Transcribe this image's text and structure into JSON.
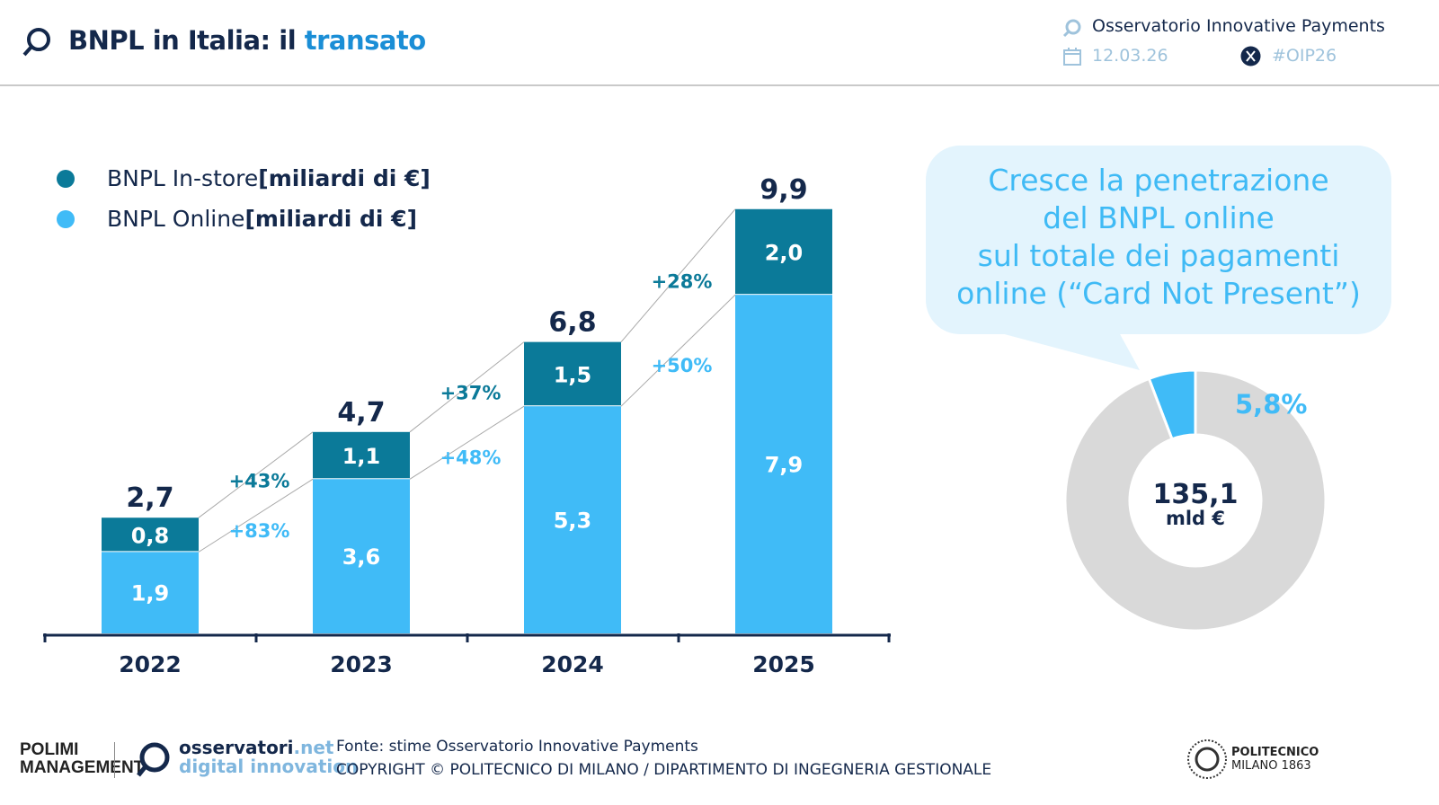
{
  "header": {
    "title_main": "BNPL in Italia: il ",
    "title_accent": "transato",
    "org": "Osservatorio Innovative Payments",
    "date": "12.03.26",
    "hashtag": "#OIP26"
  },
  "legend": [
    {
      "label": "BNPL In-store ",
      "unit": "[miliardi di €]",
      "color": "#0b7a99"
    },
    {
      "label": "BNPL Online ",
      "unit": "[miliardi di €]",
      "color": "#40bbf7"
    }
  ],
  "chart_data": [
    {
      "type": "bar",
      "stacked": true,
      "categories": [
        "2022",
        "2023",
        "2024",
        "2025"
      ],
      "series": [
        {
          "name": "BNPL Online [miliardi di €]",
          "values": [
            1.9,
            3.6,
            5.3,
            7.9
          ],
          "labels": [
            "1,9",
            "3,6",
            "5,3",
            "7,9"
          ],
          "color": "#40bbf7"
        },
        {
          "name": "BNPL In-store [miliardi di €]",
          "values": [
            0.8,
            1.1,
            1.5,
            2.0
          ],
          "labels": [
            "0,8",
            "1,1",
            "1,5",
            "2,0"
          ],
          "color": "#0b7a99"
        }
      ],
      "totals": [
        "2,7",
        "4,7",
        "6,8",
        "9,9"
      ],
      "totals_values": [
        2.7,
        4.7,
        6.8,
        9.9
      ],
      "growth_instore": [
        "+43%",
        "+37%",
        "+28%"
      ],
      "growth_online": [
        "+83%",
        "+48%",
        "+50%"
      ],
      "grid": false
    },
    {
      "type": "pie",
      "donut": true,
      "values": [
        5.8,
        94.2
      ],
      "labels": [
        "5,8%",
        ""
      ],
      "colors": [
        "#40bbf7",
        "#d9d9d9"
      ],
      "center_value": "135,1",
      "center_unit": "mld €"
    }
  ],
  "callout": {
    "lines": [
      "Cresce la penetrazione",
      "del BNPL online",
      "sul totale dei pagamenti",
      "online (“Card Not Present”)"
    ]
  },
  "footer": {
    "polimi_logo": "POLIMI SCHOOL OF MANAGEMENT",
    "osservatori_1": "osservatori",
    "osservatori_2": ".net",
    "osservatori_3": "digital innovation",
    "source": "Fonte: stime Osservatorio Innovative Payments",
    "copyright": "COPYRIGHT © POLITECNICO DI MILANO / DIPARTIMENTO DI INGEGNERIA GESTIONALE",
    "politecnico_1": "POLITECNICO",
    "politecnico_2": "MILANO 1863"
  }
}
